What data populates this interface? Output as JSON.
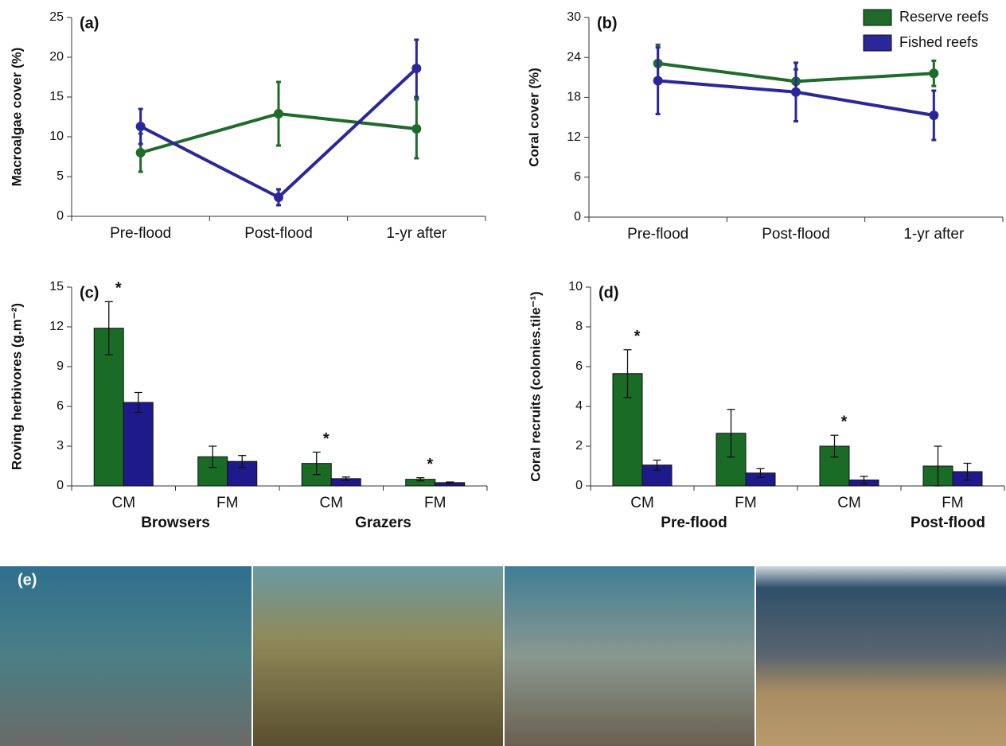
{
  "chart_data": [
    {
      "type": "line",
      "title": "(a)",
      "y_label": "Macroalgae cover (%)",
      "categories": [
        "Pre-flood",
        "Post-flood",
        "1-yr after"
      ],
      "series": [
        {
          "color": "#1f6b2b",
          "values": [
            8,
            12.9,
            11
          ],
          "errors": [
            2.4,
            4,
            3.7
          ]
        },
        {
          "color": "#2a279a",
          "values": [
            11.3,
            2.4,
            18.6
          ],
          "errors": [
            2.2,
            1,
            3.6
          ]
        }
      ],
      "ylim": [
        0,
        25
      ],
      "yticks": [
        0,
        5,
        10,
        15,
        20,
        25
      ]
    },
    {
      "type": "line",
      "title": "(b)",
      "y_label": "Coral cover (%)",
      "categories": [
        "Pre-flood",
        "Post-flood",
        "1-yr after"
      ],
      "series": [
        {
          "name": "Reserve reefs",
          "color": "#1f6b2b",
          "values": [
            23.1,
            20.4,
            21.6
          ],
          "errors": [
            2.8,
            1.8,
            1.9
          ]
        },
        {
          "name": "Fished reefs",
          "color": "#2a279a",
          "values": [
            20.5,
            18.8,
            15.3
          ],
          "errors": [
            5,
            4.4,
            3.7
          ]
        }
      ],
      "ylim": [
        0,
        30
      ],
      "yticks": [
        0,
        6,
        12,
        18,
        24,
        30
      ],
      "legend": "upper right"
    },
    {
      "type": "bar",
      "title": "(c)",
      "y_label": "Roving herbivores (g.m⁻²)",
      "categories": [
        "CM",
        "FM",
        "CM",
        "FM"
      ],
      "group_labels": [
        "Browsers",
        "Grazers"
      ],
      "significance": [
        "*",
        null,
        "*",
        "*"
      ],
      "series": [
        {
          "color": "#1a6b26",
          "values": [
            11.9,
            2.2,
            1.7,
            0.5
          ],
          "errors": [
            2,
            0.8,
            0.85,
            0.12
          ]
        },
        {
          "color": "#1f1a8c",
          "values": [
            6.3,
            1.85,
            0.55,
            0.25
          ],
          "errors": [
            0.75,
            0.45,
            0.12,
            0.05
          ]
        }
      ],
      "ylim": [
        0,
        15
      ],
      "yticks": [
        0,
        3,
        6,
        9,
        12,
        15
      ]
    },
    {
      "type": "bar",
      "title": "(d)",
      "y_label": "Coral recruits (colonies.tile⁻¹)",
      "categories": [
        "CM",
        "FM",
        "CM",
        "FM"
      ],
      "group_labels": [
        "Pre-flood",
        "Post-flood"
      ],
      "significance": [
        "*",
        null,
        "*",
        null
      ],
      "series": [
        {
          "color": "#1a6b26",
          "values": [
            5.65,
            2.65,
            2.0,
            1.0
          ],
          "errors": [
            1.2,
            1.2,
            0.55,
            1.0
          ]
        },
        {
          "color": "#1f1a8c",
          "values": [
            1.05,
            0.65,
            0.3,
            0.72
          ],
          "errors": [
            0.25,
            0.22,
            0.18,
            0.42
          ]
        }
      ],
      "ylim": [
        0,
        10
      ],
      "yticks": [
        0,
        2,
        4,
        6,
        8,
        10
      ]
    }
  ],
  "panel_e": {
    "label": "(e)"
  }
}
